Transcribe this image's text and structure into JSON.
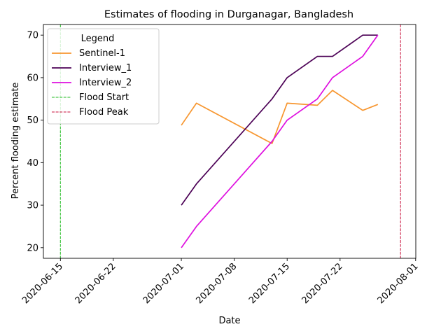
{
  "chart_data": {
    "type": "line",
    "title": "Estimates of flooding in Durganagar, Bangladesh",
    "xlabel": "Date",
    "ylabel": "Percent flooding estimate",
    "xlim": [
      "2020-06-13",
      "2020-07-31"
    ],
    "ylim": [
      17.5,
      72.5
    ],
    "x_ticks": [
      "2020-06-15",
      "2020-06-22",
      "2020-07-01",
      "2020-07-08",
      "2020-07-15",
      "2020-07-22",
      "2020-08-01"
    ],
    "y_ticks": [
      20,
      30,
      40,
      50,
      60,
      70
    ],
    "grid": false,
    "legend": {
      "title": "Legend",
      "placement": "top-left"
    },
    "series": [
      {
        "name": "Sentinel-1",
        "color": "#f7962f",
        "points": [
          {
            "x": "2020-07-01",
            "y": 48.8
          },
          {
            "x": "2020-07-03",
            "y": 54.0
          },
          {
            "x": "2020-07-13",
            "y": 44.5
          },
          {
            "x": "2020-07-15",
            "y": 54.0
          },
          {
            "x": "2020-07-19",
            "y": 53.5
          },
          {
            "x": "2020-07-21",
            "y": 57.0
          },
          {
            "x": "2020-07-25",
            "y": 52.3
          },
          {
            "x": "2020-07-27",
            "y": 53.7
          }
        ]
      },
      {
        "name": "Interview_1",
        "color": "#4b0055",
        "points": [
          {
            "x": "2020-07-01",
            "y": 30
          },
          {
            "x": "2020-07-03",
            "y": 35
          },
          {
            "x": "2020-07-13",
            "y": 55
          },
          {
            "x": "2020-07-15",
            "y": 60
          },
          {
            "x": "2020-07-19",
            "y": 65
          },
          {
            "x": "2020-07-21",
            "y": 65
          },
          {
            "x": "2020-07-25",
            "y": 70
          },
          {
            "x": "2020-07-27",
            "y": 70
          }
        ]
      },
      {
        "name": "Interview_2",
        "color": "#de0fdf",
        "points": [
          {
            "x": "2020-07-01",
            "y": 20
          },
          {
            "x": "2020-07-03",
            "y": 25
          },
          {
            "x": "2020-07-13",
            "y": 45
          },
          {
            "x": "2020-07-15",
            "y": 50
          },
          {
            "x": "2020-07-19",
            "y": 55
          },
          {
            "x": "2020-07-21",
            "y": 60
          },
          {
            "x": "2020-07-25",
            "y": 65
          },
          {
            "x": "2020-07-27",
            "y": 70
          }
        ]
      }
    ],
    "vlines": [
      {
        "name": "Flood Start",
        "x": "2020-06-15",
        "color": "#22bb22",
        "style": "dashed"
      },
      {
        "name": "Flood Peak",
        "x": "2020-07-30",
        "color": "#c8103c",
        "style": "dashed"
      }
    ]
  }
}
